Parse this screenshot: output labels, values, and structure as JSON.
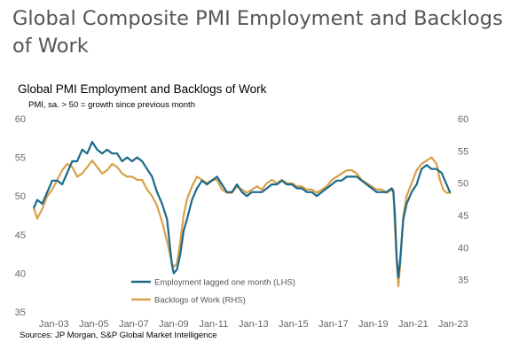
{
  "page": {
    "title": "Global Composite PMI Employment and Backlogs of Work",
    "source": "Sources: JP Morgan, S&P Global Market Intelligence"
  },
  "chart_data": {
    "type": "line",
    "title": "Global PMI Employment  and Backlogs of Work",
    "subtitle": "PMI, sa. > 50 = growth  since previous  month",
    "x_tick_labels": [
      "Jan-03",
      "Jan-05",
      "Jan-07",
      "Jan-09",
      "Jan-11",
      "Jan-13",
      "Jan-15",
      "Jan-17",
      "Jan-19",
      "Jan-21",
      "Jan-23"
    ],
    "left_axis": {
      "ticks": [
        "35",
        "40",
        "45",
        "50",
        "55",
        "60"
      ],
      "ylim": [
        35,
        60
      ]
    },
    "right_axis": {
      "ticks": [
        "35",
        "40",
        "45",
        "50",
        "55",
        "60"
      ],
      "ylim": [
        30,
        60
      ]
    },
    "grid": false,
    "legend_position": "bottom-center",
    "series": [
      {
        "name": "Employment lagged one month (LHS)",
        "axis": "left",
        "color": "#1b6a8a",
        "points": [
          [
            "2002-01",
            48.5
          ],
          [
            "2002-03",
            49.5
          ],
          [
            "2002-06",
            49.0
          ],
          [
            "2002-09",
            50.5
          ],
          [
            "2002-12",
            52.0
          ],
          [
            "2003-03",
            52.0
          ],
          [
            "2003-06",
            51.5
          ],
          [
            "2003-09",
            53.0
          ],
          [
            "2003-12",
            54.5
          ],
          [
            "2004-03",
            54.5
          ],
          [
            "2004-06",
            56.0
          ],
          [
            "2004-09",
            55.5
          ],
          [
            "2004-12",
            57.0
          ],
          [
            "2005-03",
            56.0
          ],
          [
            "2005-06",
            55.5
          ],
          [
            "2005-09",
            56.0
          ],
          [
            "2005-12",
            55.5
          ],
          [
            "2006-03",
            55.5
          ],
          [
            "2006-06",
            54.5
          ],
          [
            "2006-09",
            55.0
          ],
          [
            "2006-12",
            54.5
          ],
          [
            "2007-03",
            55.0
          ],
          [
            "2007-06",
            54.5
          ],
          [
            "2007-09",
            53.5
          ],
          [
            "2007-12",
            52.5
          ],
          [
            "2008-03",
            50.5
          ],
          [
            "2008-06",
            49.0
          ],
          [
            "2008-09",
            47.0
          ],
          [
            "2008-12",
            41.0
          ],
          [
            "2009-01",
            40.0
          ],
          [
            "2009-03",
            40.5
          ],
          [
            "2009-05",
            42.5
          ],
          [
            "2009-07",
            45.5
          ],
          [
            "2009-09",
            47.0
          ],
          [
            "2009-12",
            49.5
          ],
          [
            "2010-03",
            51.0
          ],
          [
            "2010-06",
            52.0
          ],
          [
            "2010-09",
            51.5
          ],
          [
            "2010-12",
            52.0
          ],
          [
            "2011-03",
            52.5
          ],
          [
            "2011-06",
            51.5
          ],
          [
            "2011-09",
            50.5
          ],
          [
            "2011-12",
            50.5
          ],
          [
            "2012-03",
            51.5
          ],
          [
            "2012-06",
            50.5
          ],
          [
            "2012-09",
            50.0
          ],
          [
            "2012-12",
            50.5
          ],
          [
            "2013-03",
            50.5
          ],
          [
            "2013-06",
            50.5
          ],
          [
            "2013-09",
            51.0
          ],
          [
            "2013-12",
            51.5
          ],
          [
            "2014-03",
            51.5
          ],
          [
            "2014-06",
            52.0
          ],
          [
            "2014-09",
            51.5
          ],
          [
            "2014-12",
            51.5
          ],
          [
            "2015-03",
            51.0
          ],
          [
            "2015-06",
            51.0
          ],
          [
            "2015-09",
            50.5
          ],
          [
            "2015-12",
            50.5
          ],
          [
            "2016-03",
            50.0
          ],
          [
            "2016-06",
            50.5
          ],
          [
            "2016-09",
            51.0
          ],
          [
            "2016-12",
            51.5
          ],
          [
            "2017-03",
            52.0
          ],
          [
            "2017-06",
            52.0
          ],
          [
            "2017-09",
            52.5
          ],
          [
            "2017-12",
            52.5
          ],
          [
            "2018-03",
            52.5
          ],
          [
            "2018-06",
            52.0
          ],
          [
            "2018-09",
            51.5
          ],
          [
            "2018-12",
            51.0
          ],
          [
            "2019-03",
            50.5
          ],
          [
            "2019-06",
            50.5
          ],
          [
            "2019-09",
            50.5
          ],
          [
            "2019-12",
            51.0
          ],
          [
            "2020-01",
            50.5
          ],
          [
            "2020-02",
            47.5
          ],
          [
            "2020-03",
            42.0
          ],
          [
            "2020-04",
            39.5
          ],
          [
            "2020-05",
            41.5
          ],
          [
            "2020-07",
            47.0
          ],
          [
            "2020-09",
            49.0
          ],
          [
            "2020-12",
            50.5
          ],
          [
            "2021-03",
            51.5
          ],
          [
            "2021-06",
            53.5
          ],
          [
            "2021-09",
            54.0
          ],
          [
            "2021-12",
            53.5
          ],
          [
            "2022-03",
            53.5
          ],
          [
            "2022-06",
            53.0
          ],
          [
            "2022-09",
            51.5
          ],
          [
            "2022-10",
            51.0
          ],
          [
            "2022-11",
            50.5
          ]
        ]
      },
      {
        "name": "Backlogs of Work (RHS)",
        "axis": "right",
        "color": "#d9a04a",
        "points": [
          [
            "2002-01",
            46.0
          ],
          [
            "2002-03",
            44.5
          ],
          [
            "2002-06",
            46.0
          ],
          [
            "2002-09",
            48.0
          ],
          [
            "2002-12",
            49.0
          ],
          [
            "2003-03",
            50.5
          ],
          [
            "2003-06",
            52.0
          ],
          [
            "2003-09",
            53.0
          ],
          [
            "2003-12",
            52.5
          ],
          [
            "2004-03",
            51.0
          ],
          [
            "2004-06",
            51.5
          ],
          [
            "2004-09",
            52.5
          ],
          [
            "2004-12",
            53.5
          ],
          [
            "2005-03",
            52.5
          ],
          [
            "2005-06",
            51.5
          ],
          [
            "2005-09",
            52.0
          ],
          [
            "2005-12",
            53.0
          ],
          [
            "2006-03",
            52.5
          ],
          [
            "2006-06",
            51.5
          ],
          [
            "2006-09",
            51.0
          ],
          [
            "2006-12",
            51.0
          ],
          [
            "2007-03",
            50.5
          ],
          [
            "2007-06",
            50.5
          ],
          [
            "2007-09",
            49.0
          ],
          [
            "2007-12",
            48.0
          ],
          [
            "2008-03",
            46.5
          ],
          [
            "2008-06",
            44.0
          ],
          [
            "2008-09",
            41.0
          ],
          [
            "2008-12",
            37.5
          ],
          [
            "2009-01",
            37.0
          ],
          [
            "2009-03",
            37.5
          ],
          [
            "2009-05",
            41.0
          ],
          [
            "2009-07",
            45.0
          ],
          [
            "2009-09",
            47.5
          ],
          [
            "2009-12",
            49.5
          ],
          [
            "2010-03",
            51.0
          ],
          [
            "2010-06",
            50.5
          ],
          [
            "2010-09",
            50.0
          ],
          [
            "2010-12",
            50.5
          ],
          [
            "2011-03",
            50.5
          ],
          [
            "2011-06",
            49.0
          ],
          [
            "2011-09",
            48.5
          ],
          [
            "2011-12",
            48.5
          ],
          [
            "2012-03",
            49.5
          ],
          [
            "2012-06",
            49.0
          ],
          [
            "2012-09",
            48.5
          ],
          [
            "2012-12",
            49.0
          ],
          [
            "2013-03",
            49.5
          ],
          [
            "2013-06",
            49.0
          ],
          [
            "2013-09",
            50.0
          ],
          [
            "2013-12",
            50.5
          ],
          [
            "2014-03",
            50.0
          ],
          [
            "2014-06",
            50.5
          ],
          [
            "2014-09",
            50.0
          ],
          [
            "2014-12",
            50.0
          ],
          [
            "2015-03",
            49.5
          ],
          [
            "2015-06",
            49.5
          ],
          [
            "2015-09",
            49.0
          ],
          [
            "2015-12",
            49.0
          ],
          [
            "2016-03",
            48.5
          ],
          [
            "2016-06",
            49.0
          ],
          [
            "2016-09",
            49.5
          ],
          [
            "2016-12",
            50.5
          ],
          [
            "2017-03",
            51.0
          ],
          [
            "2017-06",
            51.5
          ],
          [
            "2017-09",
            52.0
          ],
          [
            "2017-12",
            52.0
          ],
          [
            "2018-03",
            51.5
          ],
          [
            "2018-06",
            50.5
          ],
          [
            "2018-09",
            50.0
          ],
          [
            "2018-12",
            49.5
          ],
          [
            "2019-03",
            49.0
          ],
          [
            "2019-06",
            49.0
          ],
          [
            "2019-09",
            48.5
          ],
          [
            "2019-12",
            49.0
          ],
          [
            "2020-01",
            49.0
          ],
          [
            "2020-02",
            43.0
          ],
          [
            "2020-03",
            38.0
          ],
          [
            "2020-04",
            34.0
          ],
          [
            "2020-05",
            37.0
          ],
          [
            "2020-07",
            45.0
          ],
          [
            "2020-09",
            48.0
          ],
          [
            "2020-12",
            50.0
          ],
          [
            "2021-03",
            52.0
          ],
          [
            "2021-06",
            53.0
          ],
          [
            "2021-09",
            53.5
          ],
          [
            "2021-12",
            54.0
          ],
          [
            "2022-03",
            53.0
          ],
          [
            "2022-05",
            50.5
          ],
          [
            "2022-07",
            49.0
          ],
          [
            "2022-09",
            48.5
          ],
          [
            "2022-11",
            48.5
          ]
        ]
      }
    ]
  }
}
